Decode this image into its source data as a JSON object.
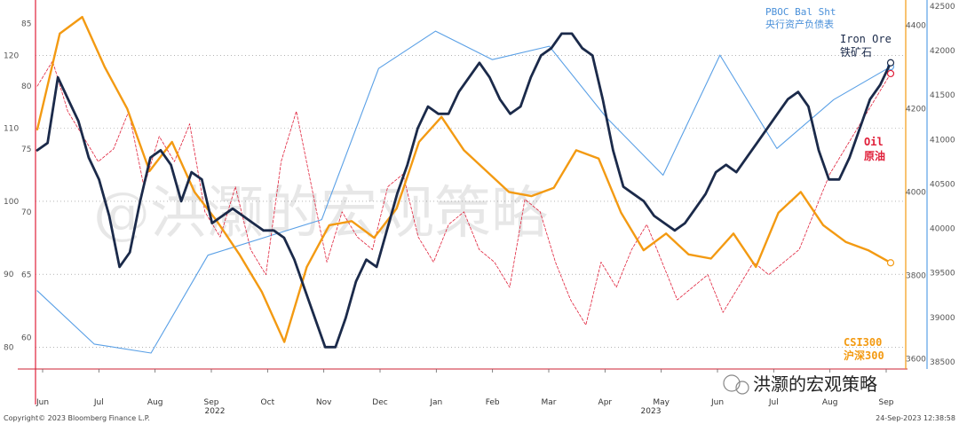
{
  "chart_data": {
    "type": "line",
    "title": "",
    "x_labels": [
      "Jun",
      "Jul",
      "Aug",
      "Sep",
      "Oct",
      "Nov",
      "Dec",
      "Jan",
      "Feb",
      "Mar",
      "Apr",
      "May",
      "Jun",
      "Jul",
      "Aug",
      "Sep"
    ],
    "year_labels": [
      "2022",
      "2023"
    ],
    "axes": {
      "left_outer": {
        "ticks": [
          80,
          90,
          100,
          110,
          120
        ],
        "range": [
          77,
          127
        ]
      },
      "left_inner": {
        "ticks": [
          60,
          65,
          70,
          75,
          80,
          85
        ],
        "range": [
          57.5,
          86.5
        ]
      },
      "right_inner": {
        "ticks": [
          3600,
          3800,
          4000,
          4200,
          4400
        ],
        "range": [
          3575,
          4450
        ]
      },
      "right_outer": {
        "ticks": [
          38500,
          39000,
          39500,
          40000,
          40500,
          41000,
          41500,
          42000,
          42500
        ],
        "range": [
          38420,
          42520
        ]
      }
    },
    "series": [
      {
        "name": "Iron Ore 铁矿石",
        "axis": "left_outer",
        "color": "#1b2a4a",
        "values": [
          107,
          108,
          117,
          114,
          111,
          106,
          103,
          98,
          91,
          93,
          100,
          106,
          107,
          105,
          100,
          104,
          103,
          97,
          98,
          99,
          98,
          97,
          96,
          96,
          95,
          92,
          88,
          84,
          80,
          80,
          84,
          89,
          92,
          91,
          96,
          101,
          105,
          110,
          113,
          112,
          112,
          115,
          117,
          119,
          117,
          114,
          112,
          113,
          117,
          120,
          121,
          123,
          123,
          121,
          120,
          114,
          107,
          102,
          101,
          100,
          98,
          97,
          96,
          97,
          99,
          101,
          104,
          105,
          104,
          106,
          108,
          110,
          112,
          114,
          115,
          113,
          107,
          103,
          103,
          106,
          110,
          114,
          116,
          119
        ]
      },
      {
        "name": "PBOC Bal Sht 央行资产负债表",
        "axis": "right_outer",
        "color": "#5aa0e6",
        "values": [
          39300,
          38700,
          38600,
          39700,
          39900,
          40100,
          41800,
          42220,
          41900,
          42050,
          41250,
          40600,
          41950,
          40900,
          41450,
          41820
        ]
      },
      {
        "name": "Oil 原油",
        "axis": "left_inner",
        "color": "#e0203a",
        "values": [
          80,
          82,
          78,
          76,
          74,
          75,
          78,
          72,
          76,
          74,
          77,
          70,
          68,
          72,
          67,
          65,
          74,
          78,
          72,
          66,
          70,
          68,
          67,
          72,
          73,
          68,
          66,
          69,
          70,
          67,
          66,
          64,
          71,
          70,
          66,
          63,
          61,
          66,
          64,
          67,
          69,
          66,
          63,
          64,
          65,
          62,
          64,
          66,
          65,
          66,
          67,
          70,
          73,
          75,
          77,
          79,
          81
        ]
      },
      {
        "name": "CSI300 沪深300",
        "axis": "right_inner",
        "color": "#f39a12",
        "values": [
          4150,
          4380,
          4420,
          4300,
          4200,
          4050,
          4120,
          4000,
          3930,
          3850,
          3760,
          3640,
          3820,
          3920,
          3930,
          3890,
          3960,
          4120,
          4180,
          4100,
          4050,
          4000,
          3990,
          4010,
          4100,
          4080,
          3950,
          3860,
          3900,
          3850,
          3840,
          3900,
          3820,
          3950,
          4000,
          3920,
          3880,
          3860,
          3830
        ]
      }
    ]
  },
  "labels": {
    "pboc": "PBOC Bal Sht",
    "pboc_cn": "央行资产负债表",
    "iron": "Iron Ore",
    "iron_cn": "铁矿石",
    "oil": "Oil",
    "oil_cn": "原油",
    "csi": "CSI300",
    "csi_cn": "沪深300",
    "watermark": "@洪灏的宏观策略",
    "wechat": "洪灏的宏观策略",
    "copyright": "Copyright© 2023 Bloomberg Finance L.P.",
    "timestamp": "24-Sep-2023 12:38:58"
  }
}
